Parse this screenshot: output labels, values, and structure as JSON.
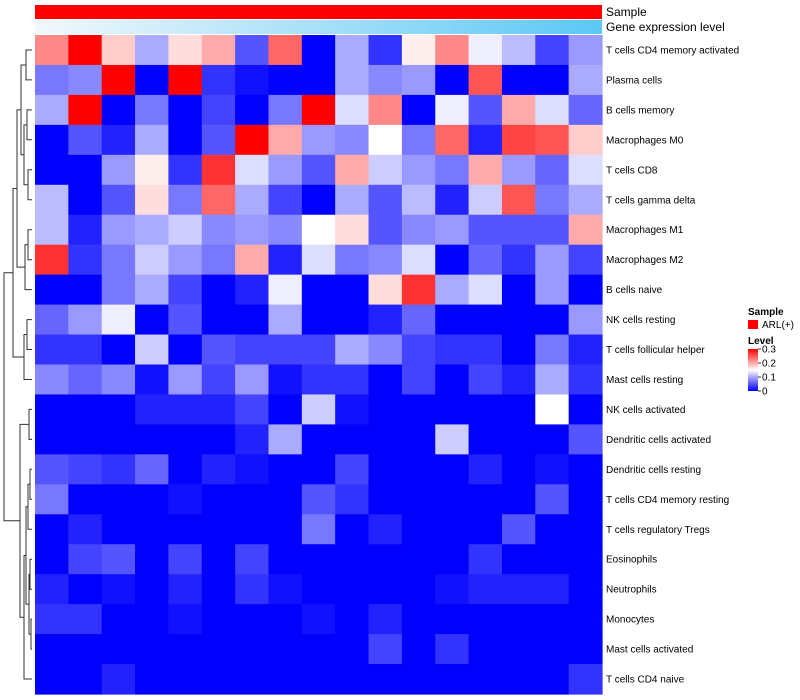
{
  "chart_data": {
    "type": "heatmap",
    "title": "",
    "annotation_labels": [
      "Sample",
      "Gene expression level"
    ],
    "colors": {
      "low": "#0000ff",
      "mid": "#ffffff",
      "high": "#ff0000",
      "sample_bar": "#ff0000",
      "expression_low": "#f2f8fc",
      "expression_high": "#5bc8f5",
      "dendrogram": "#333333"
    },
    "rows": [
      "T cells CD4 memory activated",
      "Plasma cells",
      "B cells memory",
      "Macrophages M0",
      "T cells CD8",
      "T cells gamma delta",
      "Macrophages M1",
      "Macrophages M2",
      "B cells naive",
      "NK cells resting",
      "T cells follicular helper",
      "Mast cells resting",
      "NK cells activated",
      "Dendritic cells activated",
      "Dendritic cells resting",
      "T cells CD4 memory resting",
      "T cells regulatory  Tregs",
      "Eosinophils",
      "Neutrophils",
      "Monocytes",
      "Mast cells activated",
      "T cells CD4 naive"
    ],
    "n_columns": 17,
    "values": [
      [
        0.22,
        0.3,
        0.18,
        0.1,
        0.17,
        0.2,
        0.05,
        0.24,
        0.0,
        0.1,
        0.03,
        0.16,
        0.22,
        0.14,
        0.11,
        0.04,
        0.09
      ],
      [
        0.07,
        0.08,
        0.3,
        0.0,
        0.3,
        0.03,
        0.01,
        0.0,
        0.0,
        0.1,
        0.08,
        0.09,
        0.0,
        0.25,
        0.0,
        0.0,
        0.1
      ],
      [
        0.1,
        0.3,
        0.0,
        0.07,
        0.0,
        0.04,
        0.0,
        0.07,
        0.3,
        0.13,
        0.22,
        0.0,
        0.14,
        0.05,
        0.2,
        0.13,
        0.06
      ],
      [
        0.0,
        0.05,
        0.02,
        0.1,
        0.0,
        0.05,
        0.3,
        0.2,
        0.09,
        0.08,
        0.15,
        0.07,
        0.24,
        0.02,
        0.26,
        0.25,
        0.18
      ],
      [
        0.0,
        0.0,
        0.09,
        0.16,
        0.03,
        0.27,
        0.13,
        0.09,
        0.05,
        0.2,
        0.12,
        0.09,
        0.07,
        0.2,
        0.09,
        0.06,
        0.13
      ],
      [
        0.11,
        0.0,
        0.05,
        0.17,
        0.07,
        0.24,
        0.1,
        0.04,
        0.0,
        0.1,
        0.05,
        0.11,
        0.02,
        0.12,
        0.25,
        0.07,
        0.1
      ],
      [
        0.11,
        0.02,
        0.09,
        0.1,
        0.12,
        0.08,
        0.09,
        0.08,
        0.15,
        0.17,
        0.05,
        0.08,
        0.09,
        0.05,
        0.05,
        0.05,
        0.2
      ],
      [
        0.27,
        0.03,
        0.07,
        0.12,
        0.09,
        0.07,
        0.2,
        0.02,
        0.13,
        0.07,
        0.08,
        0.13,
        0.0,
        0.06,
        0.03,
        0.09,
        0.04
      ],
      [
        0.0,
        0.0,
        0.07,
        0.1,
        0.04,
        0.0,
        0.02,
        0.14,
        0.0,
        0.0,
        0.17,
        0.27,
        0.1,
        0.13,
        0.0,
        0.09,
        0.0
      ],
      [
        0.06,
        0.09,
        0.14,
        0.0,
        0.05,
        0.0,
        0.0,
        0.1,
        0.0,
        0.0,
        0.02,
        0.06,
        0.0,
        0.0,
        0.0,
        0.0,
        0.09
      ],
      [
        0.03,
        0.03,
        0.0,
        0.12,
        0.0,
        0.05,
        0.04,
        0.04,
        0.04,
        0.1,
        0.08,
        0.04,
        0.03,
        0.03,
        0.0,
        0.07,
        0.02
      ],
      [
        0.08,
        0.06,
        0.08,
        0.01,
        0.09,
        0.04,
        0.09,
        0.01,
        0.03,
        0.03,
        0.0,
        0.04,
        0.0,
        0.04,
        0.02,
        0.1,
        0.03
      ],
      [
        0.0,
        0.0,
        0.0,
        0.02,
        0.02,
        0.02,
        0.04,
        0.0,
        0.12,
        0.01,
        0.0,
        0.0,
        0.0,
        0.0,
        0.0,
        0.15,
        0.0
      ],
      [
        0.0,
        0.0,
        0.0,
        0.0,
        0.0,
        0.0,
        0.02,
        0.1,
        0.0,
        0.0,
        0.0,
        0.0,
        0.12,
        0.0,
        0.0,
        0.0,
        0.05
      ],
      [
        0.05,
        0.04,
        0.03,
        0.06,
        0.0,
        0.02,
        0.01,
        0.0,
        0.0,
        0.04,
        0.0,
        0.0,
        0.0,
        0.02,
        0.0,
        0.01,
        0.0
      ],
      [
        0.07,
        0.0,
        0.0,
        0.0,
        0.01,
        0.0,
        0.0,
        0.0,
        0.05,
        0.03,
        0.0,
        0.0,
        0.0,
        0.0,
        0.0,
        0.05,
        0.0
      ],
      [
        0.0,
        0.02,
        0.0,
        0.0,
        0.0,
        0.0,
        0.0,
        0.0,
        0.07,
        0.0,
        0.02,
        0.0,
        0.0,
        0.0,
        0.05,
        0.0,
        0.0
      ],
      [
        0.0,
        0.04,
        0.05,
        0.0,
        0.04,
        0.0,
        0.04,
        0.0,
        0.0,
        0.0,
        0.0,
        0.0,
        0.0,
        0.03,
        0.0,
        0.0,
        0.0
      ],
      [
        0.02,
        0.0,
        0.01,
        0.0,
        0.02,
        0.0,
        0.03,
        0.01,
        0.0,
        0.0,
        0.0,
        0.0,
        0.01,
        0.02,
        0.02,
        0.02,
        0.0
      ],
      [
        0.03,
        0.03,
        0.0,
        0.0,
        0.01,
        0.0,
        0.0,
        0.0,
        0.01,
        0.0,
        0.02,
        0.0,
        0.0,
        0.0,
        0.0,
        0.0,
        0.0
      ],
      [
        0.0,
        0.0,
        0.0,
        0.0,
        0.0,
        0.0,
        0.0,
        0.0,
        0.0,
        0.0,
        0.04,
        0.0,
        0.03,
        0.0,
        0.0,
        0.0,
        0.0
      ],
      [
        0.0,
        0.0,
        0.02,
        0.0,
        0.0,
        0.0,
        0.0,
        0.0,
        0.0,
        0.0,
        0.0,
        0.0,
        0.0,
        0.0,
        0.0,
        0.0,
        0.03
      ]
    ],
    "legend": {
      "sample_title": "Sample",
      "sample_entry": "ARL(+)",
      "level_title": "Level",
      "level_ticks": [
        0.3,
        0.2,
        0.1,
        0
      ],
      "value_range": [
        0,
        0.3
      ]
    }
  }
}
